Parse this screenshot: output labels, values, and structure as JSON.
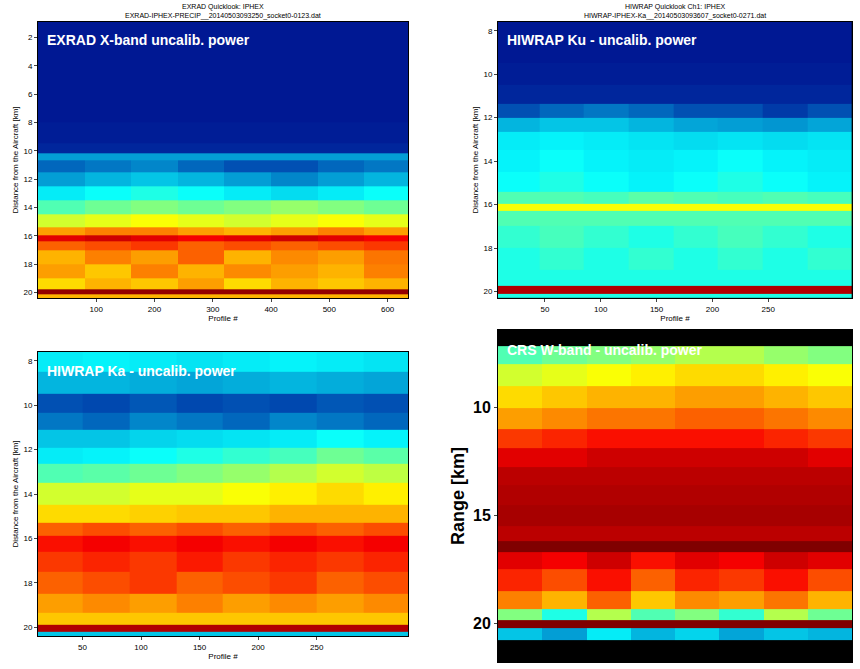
{
  "chart_data": [
    {
      "type": "heatmap",
      "title": "EXRAD Quicklook: IPHEX",
      "subtitle": "EXRAD-IPHEX-PRECIP__20140503093250_socket0-0123.dat",
      "annotations": [
        "EXRAD X-band uncalib. power"
      ],
      "xlabel": "Profile #",
      "ylabel": "Distance from the Aircraft [km]",
      "grid": false,
      "xlim": [
        0,
        635
      ],
      "xticks": [
        100,
        200,
        300,
        400,
        500,
        600
      ],
      "ylim": [
        20.4,
        0.9
      ],
      "yticks": [
        2,
        4,
        6,
        8,
        10,
        12,
        14,
        16,
        18,
        20
      ],
      "zlim": [
        0,
        100
      ],
      "x": [
        40,
        120,
        200,
        280,
        360,
        440,
        520,
        600
      ],
      "y": [
        1,
        3,
        5,
        7,
        9,
        10,
        10.3,
        11,
        12,
        13,
        14,
        15,
        15.8,
        16.2,
        16.6,
        17.5,
        18.5,
        19.5,
        20,
        20.3
      ],
      "cells": [
        [
          5,
          5,
          5,
          5,
          5,
          5,
          5,
          5
        ],
        [
          5,
          5,
          5,
          5,
          5,
          5,
          5,
          5
        ],
        [
          5,
          5,
          5,
          5,
          5,
          5,
          5,
          5
        ],
        [
          5,
          5,
          5,
          5,
          5,
          5,
          5,
          5
        ],
        [
          6,
          6,
          6,
          6,
          6,
          6,
          6,
          6
        ],
        [
          8,
          8,
          8,
          8,
          8,
          8,
          8,
          8
        ],
        [
          25,
          25,
          25,
          25,
          25,
          25,
          25,
          25
        ],
        [
          18,
          20,
          22,
          18,
          15,
          15,
          18,
          20
        ],
        [
          25,
          28,
          30,
          28,
          25,
          22,
          25,
          28
        ],
        [
          35,
          38,
          40,
          38,
          35,
          33,
          35,
          38
        ],
        [
          45,
          48,
          50,
          48,
          50,
          52,
          50,
          48
        ],
        [
          58,
          60,
          62,
          60,
          58,
          60,
          62,
          60
        ],
        [
          72,
          75,
          75,
          72,
          70,
          72,
          75,
          72
        ],
        [
          90,
          92,
          90,
          88,
          90,
          92,
          90,
          88
        ],
        [
          78,
          80,
          82,
          78,
          80,
          78,
          80,
          82
        ],
        [
          70,
          75,
          72,
          78,
          70,
          74,
          72,
          76
        ],
        [
          72,
          68,
          75,
          70,
          74,
          72,
          70,
          75
        ],
        [
          66,
          70,
          68,
          72,
          66,
          70,
          68,
          70
        ],
        [
          98,
          98,
          98,
          98,
          98,
          98,
          98,
          98
        ],
        [
          70,
          70,
          70,
          70,
          70,
          70,
          70,
          70
        ]
      ]
    },
    {
      "type": "heatmap",
      "title": "HIWRAP Quicklook Ch1: IPHEX",
      "subtitle": "HIWRAP-IPHEX-Ka__20140503093607_socket0-0271.dat",
      "annotations": [
        "HIWRAP Ku - uncalib. power"
      ],
      "xlabel": "Profile #",
      "ylabel": "Distance from the Aircraft [km]",
      "grid": false,
      "xlim": [
        8,
        325
      ],
      "xticks": [
        50,
        100,
        150,
        200,
        250
      ],
      "ylim": [
        20.3,
        7.6
      ],
      "yticks": [
        8,
        10,
        12,
        14,
        16,
        18,
        20
      ],
      "zlim": [
        0,
        100
      ],
      "x": [
        25,
        65,
        105,
        145,
        185,
        225,
        265,
        305
      ],
      "y": [
        8,
        9,
        10,
        11,
        11.7,
        12.3,
        13,
        14,
        15,
        15.8,
        16.1,
        16.5,
        17.5,
        18.5,
        19.5,
        20,
        20.2
      ],
      "cells": [
        [
          5,
          5,
          5,
          5,
          5,
          5,
          5,
          5
        ],
        [
          5,
          5,
          5,
          5,
          5,
          5,
          5,
          5
        ],
        [
          6,
          6,
          6,
          6,
          6,
          6,
          6,
          6
        ],
        [
          8,
          8,
          8,
          8,
          8,
          8,
          8,
          8
        ],
        [
          15,
          18,
          20,
          18,
          15,
          15,
          12,
          15
        ],
        [
          28,
          30,
          30,
          28,
          26,
          25,
          24,
          26
        ],
        [
          35,
          36,
          35,
          34,
          33,
          34,
          33,
          34
        ],
        [
          36,
          38,
          36,
          35,
          36,
          38,
          36,
          35
        ],
        [
          38,
          40,
          38,
          36,
          38,
          40,
          38,
          36
        ],
        [
          45,
          45,
          44,
          46,
          45,
          44,
          45,
          44
        ],
        [
          62,
          62,
          62,
          62,
          62,
          62,
          62,
          62
        ],
        [
          45,
          45,
          45,
          45,
          45,
          45,
          45,
          45
        ],
        [
          42,
          44,
          42,
          40,
          42,
          44,
          42,
          40
        ],
        [
          40,
          42,
          40,
          42,
          40,
          42,
          40,
          42
        ],
        [
          40,
          40,
          40,
          40,
          40,
          40,
          40,
          40
        ],
        [
          95,
          95,
          95,
          95,
          95,
          95,
          95,
          95
        ],
        [
          40,
          40,
          40,
          40,
          40,
          40,
          40,
          40
        ]
      ]
    },
    {
      "type": "heatmap",
      "annotations": [
        "HIWRAP Ka - uncalib. power"
      ],
      "xlabel": "Profile #",
      "ylabel": "Distance from the Aircraft [km]",
      "grid": false,
      "xlim": [
        12,
        328
      ],
      "xticks": [
        50,
        100,
        150,
        200,
        250
      ],
      "ylim": [
        20.4,
        7.6
      ],
      "yticks": [
        8,
        10,
        12,
        14,
        16,
        18,
        20
      ],
      "zlim": [
        0,
        100
      ],
      "x": [
        30,
        70,
        110,
        150,
        190,
        230,
        270,
        310
      ],
      "y": [
        8,
        9,
        10,
        10.7,
        11.5,
        12.3,
        13,
        14,
        15,
        15.6,
        16.2,
        17,
        18,
        19,
        19.7,
        20.1,
        20.35
      ],
      "cells": [
        [
          35,
          36,
          35,
          34,
          35,
          36,
          35,
          34
        ],
        [
          28,
          28,
          27,
          26,
          27,
          28,
          27,
          26
        ],
        [
          15,
          14,
          16,
          14,
          15,
          14,
          16,
          15
        ],
        [
          20,
          18,
          22,
          20,
          18,
          22,
          20,
          18
        ],
        [
          30,
          30,
          32,
          33,
          34,
          35,
          38,
          36
        ],
        [
          35,
          36,
          38,
          40,
          42,
          44,
          48,
          46
        ],
        [
          45,
          46,
          48,
          50,
          52,
          55,
          58,
          56
        ],
        [
          58,
          58,
          60,
          60,
          62,
          64,
          66,
          64
        ],
        [
          66,
          66,
          67,
          68,
          68,
          70,
          70,
          70
        ],
        [
          78,
          80,
          78,
          80,
          78,
          80,
          78,
          80
        ],
        [
          86,
          88,
          86,
          88,
          86,
          88,
          86,
          88
        ],
        [
          82,
          84,
          82,
          85,
          82,
          84,
          82,
          84
        ],
        [
          78,
          80,
          82,
          78,
          80,
          82,
          78,
          80
        ],
        [
          72,
          74,
          72,
          75,
          72,
          74,
          72,
          74
        ],
        [
          68,
          68,
          68,
          68,
          68,
          68,
          68,
          68
        ],
        [
          95,
          95,
          95,
          95,
          95,
          95,
          95,
          95
        ],
        [
          30,
          30,
          30,
          30,
          30,
          30,
          30,
          30
        ]
      ]
    },
    {
      "type": "heatmap",
      "annotations": [
        "CRS W-band - uncalib. power"
      ],
      "ylabel": "Range [km]",
      "grid": false,
      "tick_labels": "y",
      "xlim": [
        0.5,
        8.5
      ],
      "ylim": [
        21.8,
        6.4
      ],
      "yticks": [
        10,
        15,
        20
      ],
      "zlim": [
        0,
        100
      ],
      "x": [
        1,
        2,
        3,
        4,
        5,
        6,
        7,
        8
      ],
      "y": [
        6.8,
        7.5,
        8.5,
        9.5,
        10.5,
        11.5,
        12.3,
        13.2,
        14,
        15,
        16,
        16.4,
        17,
        18,
        19,
        19.7,
        20.05,
        20.4,
        21.2
      ],
      "cells": [
        [
          null,
          null,
          null,
          null,
          null,
          null,
          null,
          null
        ],
        [
          45,
          48,
          50,
          52,
          55,
          55,
          52,
          50
        ],
        [
          58,
          60,
          62,
          64,
          66,
          66,
          64,
          62
        ],
        [
          66,
          68,
          70,
          70,
          72,
          72,
          70,
          68
        ],
        [
          72,
          74,
          76,
          76,
          78,
          78,
          76,
          74
        ],
        [
          82,
          84,
          86,
          86,
          86,
          86,
          84,
          82
        ],
        [
          90,
          90,
          92,
          92,
          92,
          92,
          92,
          90
        ],
        [
          94,
          94,
          94,
          94,
          94,
          94,
          94,
          94
        ],
        [
          95,
          95,
          95,
          95,
          95,
          95,
          95,
          95
        ],
        [
          96,
          96,
          96,
          96,
          96,
          96,
          96,
          96
        ],
        [
          94,
          94,
          94,
          94,
          94,
          94,
          94,
          94
        ],
        [
          100,
          100,
          100,
          100,
          100,
          100,
          100,
          100
        ],
        [
          90,
          88,
          92,
          86,
          90,
          88,
          92,
          90
        ],
        [
          84,
          80,
          86,
          78,
          84,
          82,
          86,
          80
        ],
        [
          75,
          70,
          78,
          68,
          74,
          72,
          76,
          70
        ],
        [
          50,
          40,
          55,
          45,
          50,
          42,
          55,
          48
        ],
        [
          100,
          100,
          100,
          100,
          100,
          100,
          100,
          100
        ],
        [
          30,
          25,
          35,
          28,
          32,
          26,
          30,
          28
        ],
        [
          null,
          null,
          null,
          null,
          null,
          null,
          null,
          null
        ]
      ]
    }
  ]
}
